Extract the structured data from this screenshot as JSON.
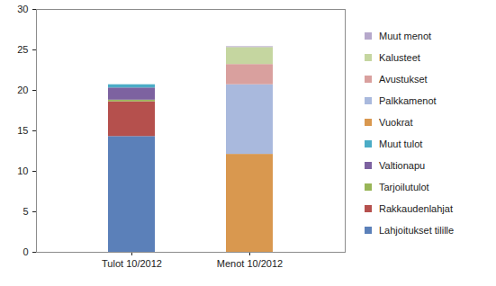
{
  "chart_data": {
    "type": "bar",
    "stacked": true,
    "legend": "right",
    "grid": false,
    "categories": [
      "Tulot 10/2012",
      "Menot 10/2012"
    ],
    "ylim": [
      0,
      30
    ],
    "yticks": [
      0,
      5,
      10,
      15,
      20,
      25,
      30
    ],
    "series": [
      {
        "name": "Lahjoitukset tilille",
        "color": "#5b80b9",
        "values": [
          14.3,
          0
        ]
      },
      {
        "name": "Rakkaudenlahjat",
        "color": "#b5504d",
        "values": [
          4.3,
          0
        ]
      },
      {
        "name": "Tarjoilutulot",
        "color": "#98b557",
        "values": [
          0.2,
          0
        ]
      },
      {
        "name": "Valtionapu",
        "color": "#7d62a0",
        "values": [
          1.5,
          0
        ]
      },
      {
        "name": "Muut tulot",
        "color": "#4bacc6",
        "values": [
          0.4,
          0
        ]
      },
      {
        "name": "Vuokrat",
        "color": "#d9984f",
        "values": [
          0,
          12.1
        ]
      },
      {
        "name": "Palkkamenot",
        "color": "#a9b9dd",
        "values": [
          0,
          8.6
        ]
      },
      {
        "name": "Avustukset",
        "color": "#d9a09e",
        "values": [
          0,
          2.5
        ]
      },
      {
        "name": "Kalusteet",
        "color": "#c5d6a0",
        "values": [
          0,
          2.1
        ]
      },
      {
        "name": "Muut menot",
        "color": "#b6a8cb",
        "values": [
          0,
          0.1
        ]
      }
    ]
  }
}
